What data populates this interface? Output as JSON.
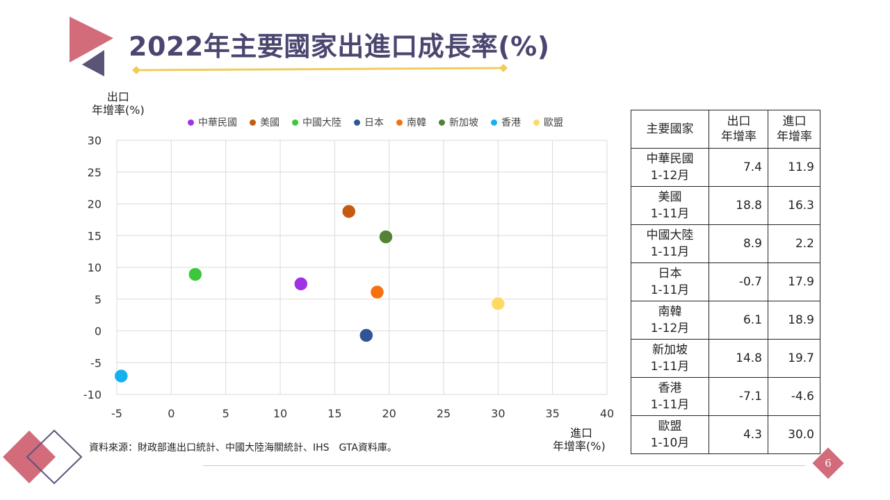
{
  "title": "2022年主要國家出進口成長率(%)",
  "source": "資料來源：財政部進出口統計、中國大陸海關統計、IHS　GTA資料庫。",
  "page_number": "6",
  "y_axis_label": {
    "line1": "出口",
    "line2": "年增率(%)"
  },
  "x_axis_label": {
    "line1": "進口",
    "line2": "年增率(%)"
  },
  "table": {
    "headers": {
      "country": "主要國家",
      "export": "出口\n年增率",
      "import": "進口\n年增率"
    },
    "rows": [
      {
        "country": "中華民國",
        "period": "1-12月",
        "export": "7.4",
        "import": "11.9"
      },
      {
        "country": "美國",
        "period": "1-11月",
        "export": "18.8",
        "import": "16.3"
      },
      {
        "country": "中國大陸",
        "period": "1-11月",
        "export": "8.9",
        "import": "2.2"
      },
      {
        "country": "日本",
        "period": "1-11月",
        "export": "-0.7",
        "import": "17.9"
      },
      {
        "country": "南韓",
        "period": "1-12月",
        "export": "6.1",
        "import": "18.9"
      },
      {
        "country": "新加坡",
        "period": "1-11月",
        "export": "14.8",
        "import": "19.7"
      },
      {
        "country": "香港",
        "period": "1-11月",
        "export": "-7.1",
        "import": "-4.6"
      },
      {
        "country": "歐盟",
        "period": "1-10月",
        "export": "4.3",
        "import": "30.0"
      }
    ]
  },
  "chart_data": {
    "type": "scatter",
    "title": "",
    "xlabel": "進口 年增率(%)",
    "ylabel": "出口 年增率(%)",
    "xlim": [
      -5,
      40
    ],
    "ylim": [
      -10,
      30
    ],
    "xticks": [
      -5,
      0,
      5,
      10,
      15,
      20,
      25,
      30,
      35,
      40
    ],
    "yticks": [
      -10,
      -5,
      0,
      5,
      10,
      15,
      20,
      25,
      30
    ],
    "grid": true,
    "legend_position": "top",
    "series": [
      {
        "name": "中華民國",
        "color": "#a032e6",
        "x": 11.9,
        "y": 7.4
      },
      {
        "name": "美國",
        "color": "#c55a11",
        "x": 16.3,
        "y": 18.8
      },
      {
        "name": "中國大陸",
        "color": "#3cc83c",
        "x": 2.2,
        "y": 8.9
      },
      {
        "name": "日本",
        "color": "#2f5597",
        "x": 17.9,
        "y": -0.7
      },
      {
        "name": "南韓",
        "color": "#f7700f",
        "x": 18.9,
        "y": 6.1
      },
      {
        "name": "新加坡",
        "color": "#548235",
        "x": 19.7,
        "y": 14.8
      },
      {
        "name": "香港",
        "color": "#16b0f0",
        "x": -4.6,
        "y": -7.1
      },
      {
        "name": "歐盟",
        "color": "#ffd966",
        "x": 30.0,
        "y": 4.3
      }
    ]
  }
}
